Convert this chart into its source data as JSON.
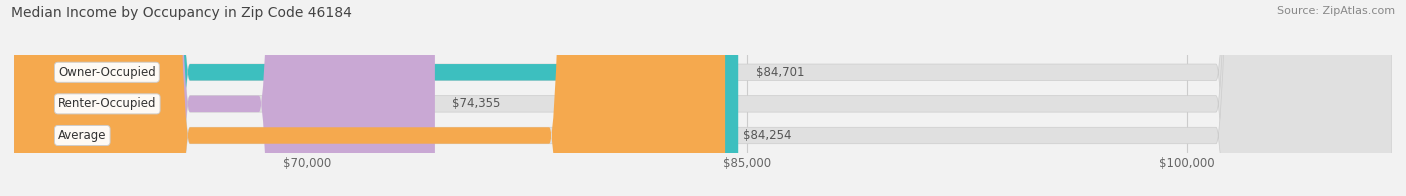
{
  "title": "Median Income by Occupancy in Zip Code 46184",
  "source": "Source: ZipAtlas.com",
  "categories": [
    "Owner-Occupied",
    "Renter-Occupied",
    "Average"
  ],
  "values": [
    84701,
    74355,
    84254
  ],
  "bar_colors": [
    "#3dbfbf",
    "#c9a8d4",
    "#f5a94e"
  ],
  "bar_labels": [
    "$84,701",
    "$74,355",
    "$84,254"
  ],
  "xmin": 60000,
  "xmax": 107000,
  "xticks": [
    70000,
    85000,
    100000
  ],
  "xtick_labels": [
    "$70,000",
    "$85,000",
    "$100,000"
  ],
  "background_color": "#f2f2f2",
  "bar_bg_color": "#e0e0e0",
  "label_fontsize": 8.5,
  "title_fontsize": 10,
  "source_fontsize": 8
}
